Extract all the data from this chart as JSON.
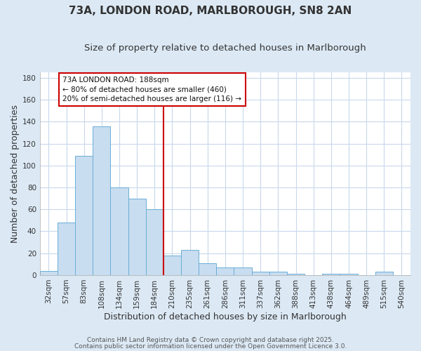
{
  "title1": "73A, LONDON ROAD, MARLBOROUGH, SN8 2AN",
  "title2": "Size of property relative to detached houses in Marlborough",
  "xlabel": "Distribution of detached houses by size in Marlborough",
  "ylabel": "Number of detached properties",
  "categories": [
    "32sqm",
    "57sqm",
    "83sqm",
    "108sqm",
    "134sqm",
    "159sqm",
    "184sqm",
    "210sqm",
    "235sqm",
    "261sqm",
    "286sqm",
    "311sqm",
    "337sqm",
    "362sqm",
    "388sqm",
    "413sqm",
    "438sqm",
    "464sqm",
    "489sqm",
    "515sqm",
    "540sqm"
  ],
  "values": [
    4,
    48,
    109,
    136,
    80,
    70,
    60,
    18,
    23,
    11,
    7,
    7,
    3,
    3,
    1,
    0,
    1,
    1,
    0,
    3,
    0
  ],
  "bar_color": "#c8ddf0",
  "bar_edge_color": "#6aaed6",
  "background_color": "#dce9f5",
  "plot_bg_color": "#ffffff",
  "grid_color": "#c8d8ec",
  "vline_x": 6.5,
  "vline_color": "#cc0000",
  "annotation_title": "73A LONDON ROAD: 188sqm",
  "annotation_line1": "← 80% of detached houses are smaller (460)",
  "annotation_line2": "20% of semi-detached houses are larger (116) →",
  "annotation_box_color": "#ffffff",
  "annotation_box_edge_color": "#cc0000",
  "ylim": [
    0,
    185
  ],
  "yticks": [
    0,
    20,
    40,
    60,
    80,
    100,
    120,
    140,
    160,
    180
  ],
  "footer1": "Contains HM Land Registry data © Crown copyright and database right 2025.",
  "footer2": "Contains public sector information licensed under the Open Government Licence 3.0.",
  "title_fontsize": 11,
  "subtitle_fontsize": 9.5,
  "axis_label_fontsize": 9,
  "tick_fontsize": 7.5,
  "footer_fontsize": 6.5
}
